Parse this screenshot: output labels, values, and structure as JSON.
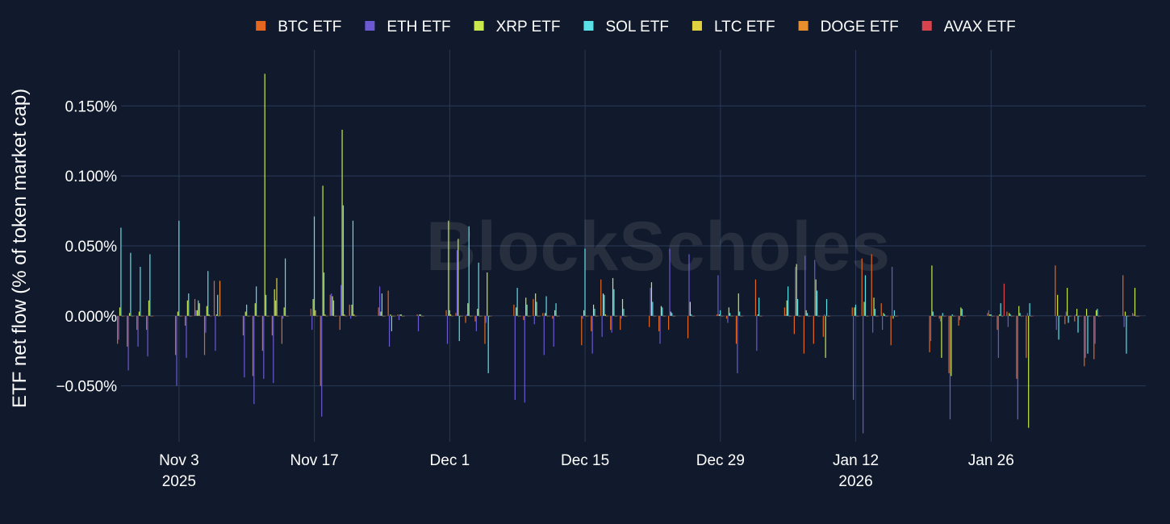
{
  "chart_data": {
    "type": "bar",
    "watermark": "BlockScholes",
    "ylabel": "ETF net flow (% of token market cap)",
    "ylim": [
      -0.0009,
      0.0019
    ],
    "yticks": [
      {
        "value": 0.0015,
        "label": "0.150%"
      },
      {
        "value": 0.001,
        "label": "0.100%"
      },
      {
        "value": 0.0005,
        "label": "0.050%"
      },
      {
        "value": 0.0,
        "label": "0.000%"
      },
      {
        "value": -0.0005,
        "label": "−0.050%"
      }
    ],
    "xrange": [
      "2025-10-28",
      "2026-02-11"
    ],
    "xticks": [
      {
        "date": "2025-11-03",
        "label": "Nov 3",
        "sub": "2025"
      },
      {
        "date": "2025-11-17",
        "label": "Nov 17",
        "sub": ""
      },
      {
        "date": "2025-12-01",
        "label": "Dec 1",
        "sub": ""
      },
      {
        "date": "2025-12-15",
        "label": "Dec 15",
        "sub": ""
      },
      {
        "date": "2025-12-29",
        "label": "Dec 29",
        "sub": ""
      },
      {
        "date": "2026-01-12",
        "label": "Jan 12",
        "sub": "2026"
      },
      {
        "date": "2026-01-26",
        "label": "Jan 26",
        "sub": ""
      }
    ],
    "legend_position": "top-center",
    "colors": {
      "background": "#111a2c",
      "grid": "#2a3957"
    },
    "x": [
      "2025-10-28",
      "2025-10-29",
      "2025-10-30",
      "2025-10-31",
      "2025-11-03",
      "2025-11-04",
      "2025-11-05",
      "2025-11-06",
      "2025-11-07",
      "2025-11-10",
      "2025-11-11",
      "2025-11-12",
      "2025-11-13",
      "2025-11-14",
      "2025-11-17",
      "2025-11-18",
      "2025-11-19",
      "2025-11-20",
      "2025-11-21",
      "2025-11-24",
      "2025-11-25",
      "2025-11-26",
      "2025-11-28",
      "2025-12-01",
      "2025-12-02",
      "2025-12-03",
      "2025-12-04",
      "2025-12-05",
      "2025-12-08",
      "2025-12-09",
      "2025-12-10",
      "2025-12-11",
      "2025-12-12",
      "2025-12-15",
      "2025-12-16",
      "2025-12-17",
      "2025-12-18",
      "2025-12-19",
      "2025-12-22",
      "2025-12-23",
      "2025-12-24",
      "2025-12-26",
      "2025-12-29",
      "2025-12-30",
      "2025-12-31",
      "2026-01-02",
      "2026-01-05",
      "2026-01-06",
      "2026-01-07",
      "2026-01-08",
      "2026-01-09",
      "2026-01-12",
      "2026-01-13",
      "2026-01-14",
      "2026-01-15",
      "2026-01-16",
      "2026-01-20",
      "2026-01-21",
      "2026-01-22",
      "2026-01-23",
      "2026-01-26",
      "2026-01-27",
      "2026-01-28",
      "2026-01-29",
      "2026-01-30",
      "2026-02-02",
      "2026-02-03",
      "2026-02-04",
      "2026-02-05",
      "2026-02-06",
      "2026-02-09",
      "2026-02-10"
    ],
    "series": [
      {
        "name": "BTC ETF",
        "color": "#e5671f",
        "values": [
          -0.0002,
          -0.00022,
          -0.0001,
          -0.0001,
          -0.00028,
          -7e-05,
          0.00012,
          -0.00028,
          0.00025,
          -0.00014,
          -0.00043,
          -0.00025,
          -0.00014,
          -0.0002,
          5e-05,
          -0.0005,
          0.00015,
          -0.0001,
          8e-05,
          6e-05,
          0.00018,
          1e-05,
          1e-05,
          4e-05,
          2e-05,
          -5e-05,
          -4e-05,
          -0.0002,
          8e-05,
          -3e-05,
          0.00012,
          2e-05,
          -2e-05,
          -0.00021,
          -0.00011,
          0.00026,
          -0.0001,
          -0.0001,
          -8e-05,
          -0.00011,
          -0.0001,
          -0.00016,
          1e-05,
          -2e-05,
          -0.0002,
          0.00026,
          6e-05,
          -0.00013,
          -0.00027,
          -0.0002,
          -0.00015,
          6e-05,
          0.00041,
          0.00044,
          9e-05,
          -0.00021,
          -0.00026,
          -2e-05,
          -0.00041,
          -7e-05,
          2e-05,
          -0.0001,
          3e-05,
          -0.00045,
          -0.0003,
          0.00036,
          -6e-05,
          -4e-05,
          -0.00036,
          -0.00031,
          0.00029,
          2e-05
        ]
      },
      {
        "name": "ETH ETF",
        "color": "#6b59d1",
        "values": [
          -0.00017,
          -0.00039,
          -0.00022,
          -0.00029,
          -0.0005,
          -0.0003,
          4e-05,
          -0.00012,
          -0.00025,
          -0.00044,
          -0.00063,
          -0.00045,
          -0.00048,
          -2e-05,
          -0.0001,
          -0.00072,
          0.00016,
          0.00022,
          -2e-05,
          0.00021,
          -0.00022,
          -3e-05,
          -0.00011,
          -0.0002,
          0.00047,
          1e-05,
          -0.00011,
          -5e-05,
          -0.0006,
          -0.00062,
          -6e-05,
          -0.00028,
          -0.00022,
          -2e-05,
          -0.00027,
          -0.00015,
          -0.00012,
          -2e-05,
          0.0002,
          -0.0002,
          0.00048,
          0.00044,
          0.00029,
          -5e-05,
          -0.00041,
          -0.00025,
          1e-05,
          0.00035,
          0.00043,
          0.0004,
          1e-05,
          -0.0006,
          -0.00084,
          -0.00012,
          -0.0001,
          0.00035,
          -0.00018,
          -4e-05,
          -0.00074,
          -3e-05,
          4e-05,
          -0.0003,
          -8e-05,
          -0.00074,
          2e-05,
          -0.0001,
          3e-05,
          1e-05,
          -0.0003,
          -0.0002,
          -8e-05,
          1e-05
        ]
      },
      {
        "name": "XRP ETF",
        "color": "#c8e84d",
        "values": [
          6e-05,
          2e-05,
          3e-05,
          0.00011,
          3e-05,
          0.00011,
          4e-05,
          7e-05,
          1e-05,
          3e-05,
          9e-05,
          0.00173,
          0.00019,
          6e-05,
          0.00012,
          0.00093,
          0.00014,
          0.00133,
          8e-05,
          3e-05,
          1e-05,
          1e-05,
          1e-05,
          0.00068,
          0.00055,
          9e-05,
          5e-05,
          0.00031,
          6e-05,
          0.00013,
          0.00016,
          2e-05,
          4e-05,
          4e-05,
          8e-05,
          0.00016,
          0.00027,
          0.00012,
          0.00024,
          7e-05,
          3e-05,
          0.0001,
          1e-05,
          6e-05,
          0.00016,
          1e-05,
          0.00011,
          0.00037,
          4e-05,
          0.00026,
          -0.0003,
          6e-05,
          0.0001,
          0.00013,
          2e-05,
          -2e-05,
          0.00036,
          -0.0003,
          -0.00043,
          6e-05,
          1e-05,
          1e-05,
          2e-05,
          7e-05,
          -0.0008,
          0.00015,
          0.0002,
          5e-05,
          5e-05,
          4e-05,
          3e-05,
          0.0002
        ]
      },
      {
        "name": "SOL ETF",
        "color": "#5ce0e8",
        "values": [
          0.00063,
          0.00045,
          0.00035,
          0.00044,
          0.00068,
          0.00016,
          0.00011,
          0.00032,
          0.00015,
          8e-05,
          0.00021,
          0.00015,
          0.00011,
          0.00041,
          0.00071,
          0.00031,
          0.00011,
          0.00079,
          0.00068,
          0.00016,
          -0.00011,
          1e-05,
          1e-05,
          4e-05,
          -0.00018,
          0.00064,
          0.00038,
          -0.00041,
          0.0002,
          8e-05,
          0.0001,
          0.00014,
          9e-05,
          0.00048,
          5e-05,
          0.00015,
          0.00019,
          5e-05,
          0.0001,
          6e-05,
          2e-05,
          1e-05,
          4e-05,
          2e-05,
          3e-05,
          0.00013,
          0.00021,
          0.00012,
          2e-05,
          0.00018,
          0.00012,
          8e-05,
          0.00029,
          5e-05,
          1e-05,
          4e-05,
          3e-05,
          2e-05,
          1e-05,
          5e-05,
          1e-05,
          9e-05,
          1e-05,
          2e-05,
          9e-05,
          -0.00017,
          -5e-05,
          -0.00012,
          -0.00027,
          5e-05,
          -0.00027,
          0.0
        ]
      },
      {
        "name": "LTC ETF",
        "color": "#dfd040",
        "values": [
          0.0,
          0.0,
          0.0,
          0.0,
          0.0,
          0.0,
          9e-05,
          1e-05,
          0.0,
          0.0,
          0.0,
          0.0,
          0.00027,
          0.0,
          4e-05,
          1e-05,
          0.0,
          1e-05,
          1e-05,
          0.0,
          0.0,
          0.0,
          0.0,
          1e-05,
          0.0,
          0.0,
          0.0,
          0.0,
          0.0,
          0.0,
          0.0,
          0.0,
          0.0,
          0.0,
          0.0,
          1e-05,
          0.0,
          0.0,
          0.0,
          0.0,
          0.0,
          0.0,
          0.0,
          0.0,
          0.0,
          0.0,
          0.0,
          0.0,
          0.0,
          0.0,
          0.0,
          0.0,
          0.0,
          0.0,
          0.0,
          0.0,
          0.0,
          0.0,
          0.0,
          0.0,
          0.0,
          0.0,
          0.0,
          0.0,
          0.0,
          0.0,
          0.0,
          0.0,
          0.0,
          0.0,
          0.0,
          0.0
        ]
      },
      {
        "name": "DOGE ETF",
        "color": "#e88e2c",
        "values": [
          0.0,
          0.0,
          0.0,
          0.0,
          0.0,
          0.0,
          0.0,
          0.0,
          0.00025,
          0.0,
          0.0,
          0.0,
          0.0,
          0.0,
          0.0,
          0.0,
          0.0,
          0.0,
          0.0,
          0.0,
          0.0,
          0.0,
          0.0,
          0.0,
          0.0,
          0.0,
          0.0,
          0.0,
          0.0,
          0.0,
          0.0,
          0.0,
          0.0,
          0.0,
          0.0,
          0.0,
          0.0,
          0.0,
          0.0,
          0.0,
          0.0,
          0.0,
          0.0,
          0.0,
          0.0,
          0.0,
          0.0,
          0.0,
          0.0,
          0.0,
          0.0,
          0.0,
          0.0,
          0.0,
          0.0,
          0.0,
          0.0,
          0.0,
          0.0,
          0.0,
          0.0,
          0.0,
          0.0,
          0.0,
          0.0,
          0.0,
          0.0,
          0.0,
          0.0,
          0.0,
          0.0,
          0.0
        ]
      },
      {
        "name": "AVAX ETF",
        "color": "#d9434e",
        "values": [
          0.0,
          0.0,
          0.0,
          0.0,
          0.0,
          0.0,
          0.0,
          0.0,
          0.0,
          0.0,
          0.0,
          0.0,
          0.0,
          0.0,
          0.0,
          0.0,
          0.0,
          0.0,
          0.0,
          0.0,
          0.0,
          0.0,
          0.0,
          0.0,
          0.0,
          0.0,
          0.0,
          0.0,
          0.0,
          0.0,
          0.0,
          0.0,
          0.0,
          0.0,
          0.0,
          0.0,
          0.0,
          0.0,
          0.0,
          0.0,
          0.0,
          0.0,
          0.0,
          0.0,
          0.0,
          0.0,
          0.0,
          0.0,
          0.0,
          0.0,
          0.0,
          0.0,
          0.0,
          0.0,
          0.0,
          0.0,
          0.0,
          0.0,
          0.0,
          0.0,
          0.0,
          0.00023,
          0.0,
          0.0,
          0.0,
          0.0,
          0.0,
          0.0,
          0.0,
          0.0,
          0.0,
          0.0
        ]
      }
    ]
  }
}
